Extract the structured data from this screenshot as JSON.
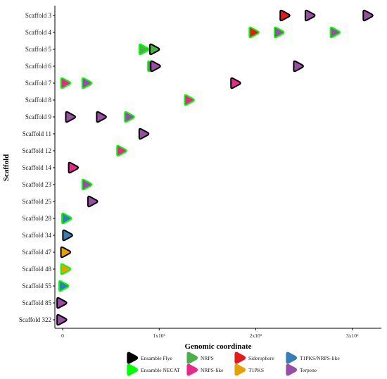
{
  "chart_data": {
    "type": "scatter",
    "title": "",
    "xlabel": "Genomic coordinate",
    "ylabel": "Scaffold",
    "xlim": [
      -80000,
      3300000
    ],
    "grid": false,
    "legend_position": "bottom",
    "x_ticks": [
      {
        "value": 0,
        "label": "0"
      },
      {
        "value": 1000000,
        "label": "1x10⁶"
      },
      {
        "value": 2000000,
        "label": "2x10⁶"
      },
      {
        "value": 3000000,
        "label": "3x10⁶"
      }
    ],
    "categories": [
      "Scaffold 3",
      "Scaffold 4",
      "Scaffold 5",
      "Scaffold 6",
      "Scaffold 7",
      "Scaffold 8",
      "Scaffold 9",
      "Scaffold 11",
      "Scaffold 12",
      "Scaffold 14",
      "Scaffold 23",
      "Scaffold 25",
      "Scaffold 28",
      "Scaffold 34",
      "Scaffold 47",
      "Scaffold 48",
      "Scaffold 55",
      "Scaffold 85",
      "Scaffold 322"
    ],
    "legend": {
      "assembly": [
        {
          "label": "Ensamble Flye",
          "color": "#000000"
        },
        {
          "label": "Ensamble NECAT",
          "color": "#00ff00"
        }
      ],
      "cluster_type": [
        {
          "label": "NRPS",
          "color": "#4daf4a"
        },
        {
          "label": "NRPS-like",
          "color": "#e7298a"
        },
        {
          "label": "Siderophore",
          "color": "#e41a1c"
        },
        {
          "label": "T1PKS",
          "color": "#e6a100"
        },
        {
          "label": "T1PKS/NRPS-like",
          "color": "#377eb8"
        },
        {
          "label": "Terpene",
          "color": "#984ea3"
        }
      ]
    },
    "points": [
      {
        "scaffold": "Scaffold 3",
        "x": 2300000,
        "type": "Siderophore",
        "assembly": "Ensamble Flye"
      },
      {
        "scaffold": "Scaffold 3",
        "x": 2560000,
        "type": "Terpene",
        "assembly": "Ensamble Flye"
      },
      {
        "scaffold": "Scaffold 3",
        "x": 3160000,
        "type": "Terpene",
        "assembly": "Ensamble Flye"
      },
      {
        "scaffold": "Scaffold 4",
        "x": 1980000,
        "type": "Siderophore",
        "assembly": "Ensamble NECAT"
      },
      {
        "scaffold": "Scaffold 4",
        "x": 2240000,
        "type": "Terpene",
        "assembly": "Ensamble NECAT"
      },
      {
        "scaffold": "Scaffold 4",
        "x": 2820000,
        "type": "Terpene",
        "assembly": "Ensamble NECAT"
      },
      {
        "scaffold": "Scaffold 5",
        "x": 840000,
        "type": "NRPS",
        "assembly": "Ensamble NECAT"
      },
      {
        "scaffold": "Scaffold 5",
        "x": 950000,
        "type": "NRPS",
        "assembly": "Ensamble Flye"
      },
      {
        "scaffold": "Scaffold 6",
        "x": 930000,
        "type": "Terpene",
        "assembly": "Ensamble NECAT"
      },
      {
        "scaffold": "Scaffold 6",
        "x": 960000,
        "type": "Terpene",
        "assembly": "Ensamble Flye"
      },
      {
        "scaffold": "Scaffold 6",
        "x": 2440000,
        "type": "Terpene",
        "assembly": "Ensamble Flye"
      },
      {
        "scaffold": "Scaffold 7",
        "x": 30000,
        "type": "NRPS-like",
        "assembly": "Ensamble NECAT"
      },
      {
        "scaffold": "Scaffold 7",
        "x": 250000,
        "type": "Terpene",
        "assembly": "Ensamble NECAT"
      },
      {
        "scaffold": "Scaffold 7",
        "x": 1790000,
        "type": "NRPS-like",
        "assembly": "Ensamble Flye"
      },
      {
        "scaffold": "Scaffold 8",
        "x": 1310000,
        "type": "NRPS-like",
        "assembly": "Ensamble NECAT"
      },
      {
        "scaffold": "Scaffold 9",
        "x": 80000,
        "type": "Terpene",
        "assembly": "Ensamble Flye"
      },
      {
        "scaffold": "Scaffold 9",
        "x": 400000,
        "type": "Terpene",
        "assembly": "Ensamble Flye"
      },
      {
        "scaffold": "Scaffold 9",
        "x": 690000,
        "type": "Terpene",
        "assembly": "Ensamble NECAT"
      },
      {
        "scaffold": "Scaffold 11",
        "x": 840000,
        "type": "Terpene",
        "assembly": "Ensamble Flye"
      },
      {
        "scaffold": "Scaffold 12",
        "x": 610000,
        "type": "NRPS-like",
        "assembly": "Ensamble NECAT"
      },
      {
        "scaffold": "Scaffold 14",
        "x": 110000,
        "type": "NRPS-like",
        "assembly": "Ensamble Flye"
      },
      {
        "scaffold": "Scaffold 23",
        "x": 250000,
        "type": "Terpene",
        "assembly": "Ensamble NECAT"
      },
      {
        "scaffold": "Scaffold 25",
        "x": 310000,
        "type": "Terpene",
        "assembly": "Ensamble Flye"
      },
      {
        "scaffold": "Scaffold 28",
        "x": 40000,
        "type": "T1PKS/NRPS-like",
        "assembly": "Ensamble NECAT"
      },
      {
        "scaffold": "Scaffold 34",
        "x": 50000,
        "type": "T1PKS/NRPS-like",
        "assembly": "Ensamble Flye"
      },
      {
        "scaffold": "Scaffold 47",
        "x": 30000,
        "type": "T1PKS",
        "assembly": "Ensamble Flye"
      },
      {
        "scaffold": "Scaffold 48",
        "x": 30000,
        "type": "T1PKS",
        "assembly": "Ensamble NECAT"
      },
      {
        "scaffold": "Scaffold 55",
        "x": 10000,
        "type": "T1PKS/NRPS-like",
        "assembly": "Ensamble NECAT"
      },
      {
        "scaffold": "Scaffold 85",
        "x": -10000,
        "type": "Terpene",
        "assembly": "Ensamble Flye"
      },
      {
        "scaffold": "Scaffold 322",
        "x": -10000,
        "type": "Terpene",
        "assembly": "Ensamble Flye"
      }
    ]
  }
}
